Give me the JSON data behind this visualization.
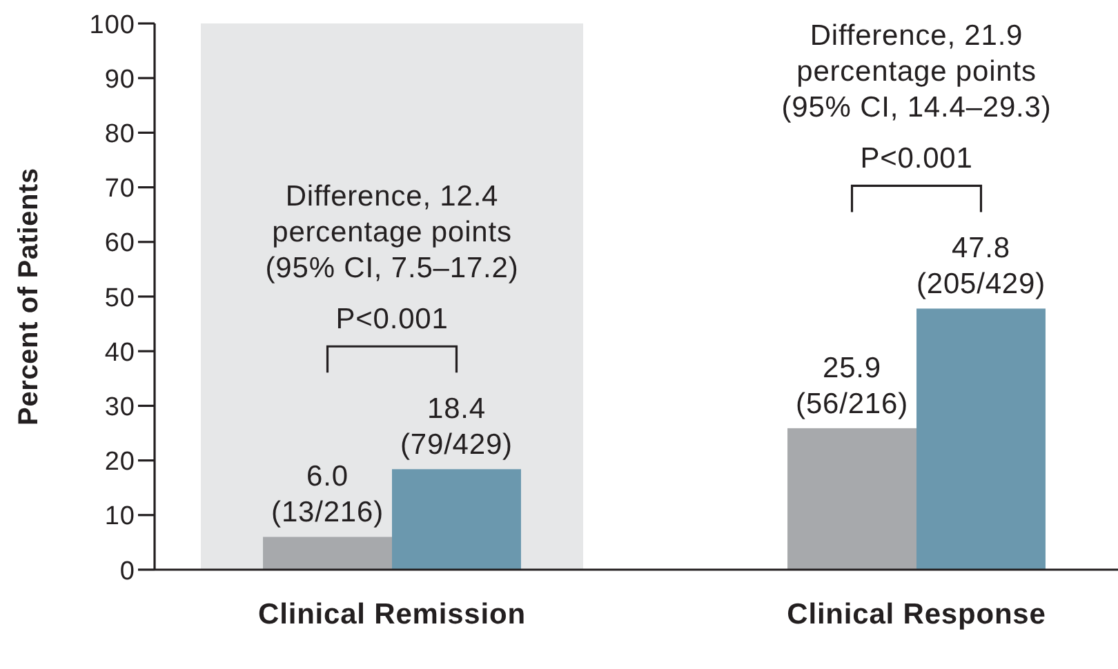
{
  "chart_data": {
    "type": "bar",
    "ylabel": "Percent of Patients",
    "categories": [
      "Clinical Remission",
      "Clinical Response"
    ],
    "series": [
      {
        "color": "#a7a9ac",
        "values": [
          6.0,
          25.9
        ],
        "value_labels": [
          "6.0\n(13/216)",
          "25.9\n(56/216)"
        ]
      },
      {
        "color": "#6b98ae",
        "values": [
          18.4,
          47.8
        ],
        "value_labels": [
          "18.4\n(79/429)",
          "47.8\n(205/429)"
        ]
      }
    ],
    "ylim": [
      0,
      100
    ],
    "yticks": [
      0,
      10,
      20,
      30,
      40,
      50,
      60,
      70,
      80,
      90,
      100
    ],
    "bands": [
      {
        "axis": "x",
        "from": "Clinical Remission",
        "to": "Clinical Remission",
        "color": "#e6e7e8"
      }
    ],
    "annotations": [
      "Difference, 12.4\npercentage points\n(95% CI, 7.5–17.2)",
      "P<0.001",
      "Difference, 21.9\npercentage points\n(95% CI, 14.4–29.3)",
      "P<0.001"
    ]
  }
}
